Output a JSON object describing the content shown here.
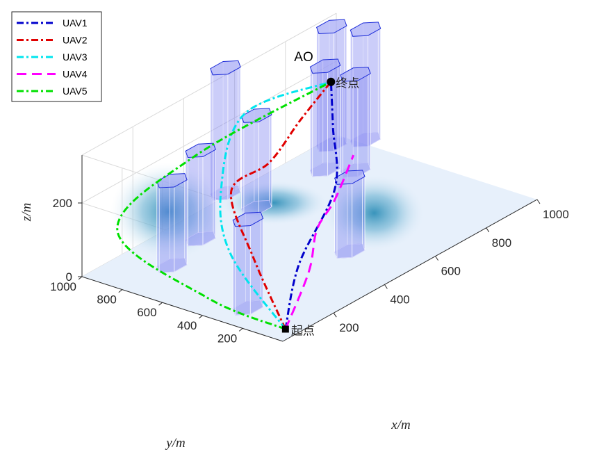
{
  "chart_data": {
    "type": "line",
    "title": "AO",
    "xlabel": "x/m",
    "ylabel": "y/m",
    "zlabel": "z/m",
    "x_ticks": [
      200,
      400,
      600,
      800,
      1000
    ],
    "y_ticks": [
      200,
      400,
      600,
      800,
      1000
    ],
    "z_ticks": [
      0,
      200
    ],
    "xlim": [
      0,
      1000
    ],
    "ylim": [
      0,
      1000
    ],
    "zlim": [
      0,
      330
    ],
    "grid": true,
    "legend_position": "top-left",
    "start_label": "起点",
    "end_label": "终点",
    "start_point": {
      "x": 50,
      "y": 50,
      "z": 5
    },
    "end_point": {
      "x": 900,
      "y": 900,
      "z": 200
    },
    "series": [
      {
        "name": "UAV1",
        "color": "#0000cc",
        "dash": "dash-dot",
        "points": [
          {
            "x": 50,
            "y": 50,
            "z": 5
          },
          {
            "x": 300,
            "y": 300,
            "z": 40
          },
          {
            "x": 560,
            "y": 450,
            "z": 120
          },
          {
            "x": 750,
            "y": 700,
            "z": 170
          },
          {
            "x": 900,
            "y": 900,
            "z": 200
          }
        ]
      },
      {
        "name": "UAV2",
        "color": "#e00000",
        "dash": "dash-dot",
        "points": [
          {
            "x": 50,
            "y": 50,
            "z": 5
          },
          {
            "x": 200,
            "y": 400,
            "z": 80
          },
          {
            "x": 350,
            "y": 700,
            "z": 150
          },
          {
            "x": 500,
            "y": 700,
            "z": 170
          },
          {
            "x": 700,
            "y": 800,
            "z": 190
          },
          {
            "x": 900,
            "y": 900,
            "z": 200
          }
        ]
      },
      {
        "name": "UAV3",
        "color": "#00e5ee",
        "dash": "dash-dot",
        "points": [
          {
            "x": 50,
            "y": 50,
            "z": 5
          },
          {
            "x": 150,
            "y": 450,
            "z": 100
          },
          {
            "x": 350,
            "y": 750,
            "z": 150
          },
          {
            "x": 600,
            "y": 950,
            "z": 220
          },
          {
            "x": 900,
            "y": 900,
            "z": 200
          }
        ]
      },
      {
        "name": "UAV4",
        "color": "#ff00ff",
        "dash": "dash",
        "points": [
          {
            "x": 50,
            "y": 50,
            "z": 5
          },
          {
            "x": 300,
            "y": 250,
            "z": 30
          },
          {
            "x": 450,
            "y": 400,
            "z": 60
          },
          {
            "x": 560,
            "y": 450,
            "z": 90
          },
          {
            "x": 720,
            "y": 560,
            "z": 130
          }
        ]
      },
      {
        "name": "UAV5",
        "color": "#00e000",
        "dash": "dash-dot",
        "points": [
          {
            "x": 50,
            "y": 50,
            "z": 5
          },
          {
            "x": 20,
            "y": 400,
            "z": 40
          },
          {
            "x": 60,
            "y": 900,
            "z": 120
          },
          {
            "x": 400,
            "y": 950,
            "z": 180
          },
          {
            "x": 900,
            "y": 900,
            "z": 200
          }
        ]
      }
    ],
    "obstacles": [
      {
        "x": 100,
        "y": 300,
        "h": 240
      },
      {
        "x": 500,
        "y": 300,
        "h": 200
      },
      {
        "x": 180,
        "y": 780,
        "h": 230
      },
      {
        "x": 340,
        "y": 840,
        "h": 240
      },
      {
        "x": 560,
        "y": 840,
        "h": 250
      },
      {
        "x": 580,
        "y": 1020,
        "h": 340
      },
      {
        "x": 830,
        "y": 840,
        "h": 280
      },
      {
        "x": 950,
        "y": 960,
        "h": 320
      },
      {
        "x": 870,
        "y": 740,
        "h": 260
      },
      {
        "x": 1020,
        "y": 880,
        "h": 300
      }
    ],
    "hills": [
      {
        "x": 300,
        "y": 950,
        "h": 170,
        "r": 160
      },
      {
        "x": 620,
        "y": 330,
        "h": 130,
        "r": 140
      },
      {
        "x": 580,
        "y": 780,
        "h": 60,
        "r": 150
      }
    ]
  }
}
